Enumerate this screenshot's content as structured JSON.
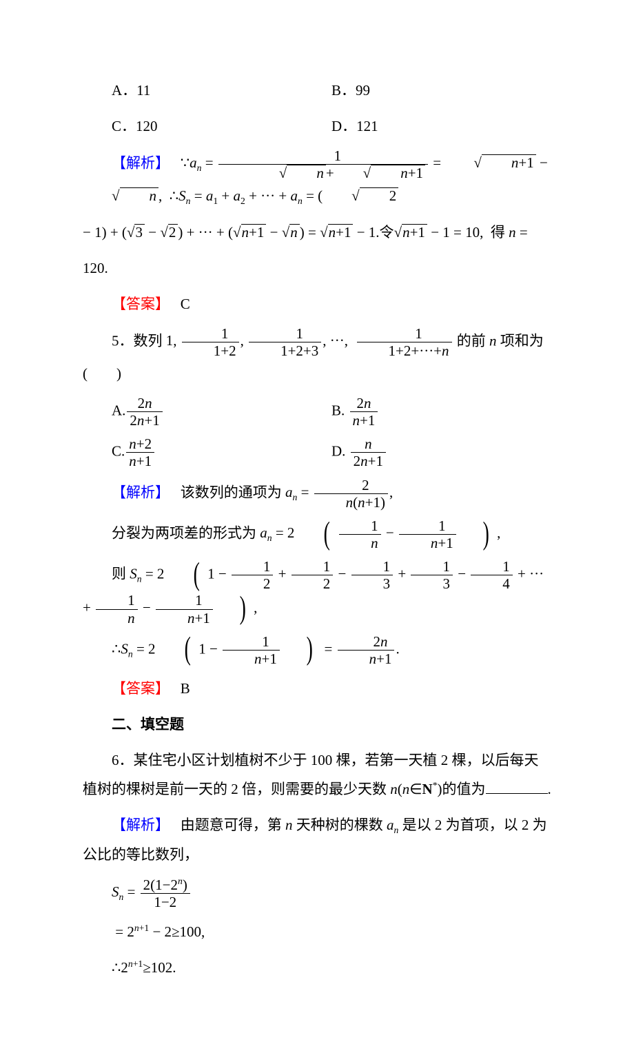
{
  "colors": {
    "text": "#000000",
    "key_blue": "#0000ff",
    "key_red": "#ff0000",
    "background": "#ffffff"
  },
  "typography": {
    "base_fontsize_pt": 16,
    "line_height": 2.0,
    "serif_cjk": "SimSun",
    "serif_latin": "Times New Roman"
  },
  "labels": {
    "jiexi": "【解析】",
    "daan": "【答案】",
    "fill_header": "二、填空题"
  },
  "q4": {
    "opts": {
      "A": "A．11",
      "B": "B．99",
      "C": "C．120",
      "D": "D．121"
    },
    "answer": "C"
  },
  "q5": {
    "stem_lead": "5．数列",
    "stem_tail": "的前 ",
    "stem_tail2": " 项和为(　　)",
    "answer": "B"
  },
  "q6": {
    "stem": "6．某住宅小区计划植树不少于 100 棵，若第一天植 2 棵，以后每天植树的棵树是前一天的 2 倍，则需要的最少天数 ",
    "stem_tail": "的值为",
    "sol_lead": "由题意可得，第 ",
    "sol_mid": " 天种树的棵数 ",
    "sol_tail": " 是以 2 为首项，以 2 为公比的等比数列，"
  }
}
